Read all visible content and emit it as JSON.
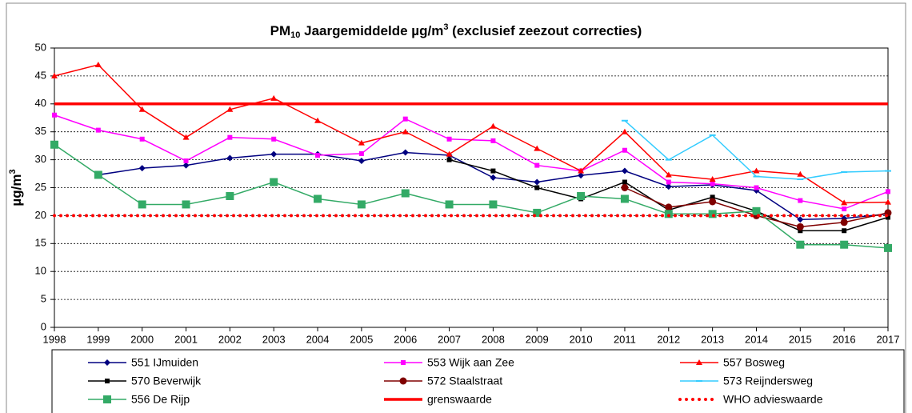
{
  "chart_data": {
    "type": "line",
    "title": [
      "PM",
      "10",
      " Jaargemiddelde µg/m",
      "3",
      "  (exclusief zeezout correcties)"
    ],
    "y_label": [
      "µg/m",
      "3"
    ],
    "categories": [
      "1998",
      "1999",
      "2000",
      "2001",
      "2002",
      "2003",
      "2004",
      "2005",
      "2006",
      "2007",
      "2008",
      "2009",
      "2010",
      "2011",
      "2012",
      "2013",
      "2014",
      "2015",
      "2016",
      "2017"
    ],
    "ylim": [
      0,
      50
    ],
    "yticks": [
      0,
      5,
      10,
      15,
      20,
      25,
      30,
      35,
      40,
      45,
      50
    ],
    "grid": true,
    "legend": "bottom",
    "series": [
      {
        "name": "551 IJmuiden",
        "color": "#000080",
        "marker": "diamond",
        "values": [
          null,
          27.3,
          28.5,
          29,
          30.3,
          31,
          31,
          29.8,
          31.3,
          30.8,
          26.8,
          26,
          27.2,
          28,
          25.2,
          25.5,
          24.5,
          19.3,
          19.5,
          20.3
        ]
      },
      {
        "name": "553 Wijk aan Zee",
        "color": "#ff00ff",
        "marker": "square",
        "values": [
          38,
          35.3,
          33.7,
          29.8,
          34,
          33.7,
          30.8,
          31.1,
          37.3,
          33.7,
          33.4,
          29,
          28,
          31.7,
          26,
          25.7,
          25,
          22.7,
          21.2,
          24.3
        ]
      },
      {
        "name": "557 Bosweg",
        "color": "#ff0000",
        "marker": "triangle",
        "values": [
          45,
          47,
          39,
          34,
          39,
          41,
          37,
          33,
          35,
          31,
          36,
          32,
          28,
          35,
          27.3,
          26.5,
          28,
          27.4,
          22.3,
          22.4
        ]
      },
      {
        "name": "570 Beverwijk",
        "color": "#000000",
        "marker": "square",
        "values": [
          null,
          null,
          null,
          null,
          null,
          null,
          null,
          null,
          null,
          30,
          28,
          25,
          23,
          26,
          21,
          23.3,
          20.8,
          17.3,
          17.3,
          19.7
        ]
      },
      {
        "name": "572 Staalstraat",
        "color": "#800000",
        "marker": "circle",
        "values": [
          null,
          null,
          null,
          null,
          null,
          null,
          null,
          null,
          null,
          null,
          null,
          null,
          null,
          25,
          21.5,
          22.5,
          20,
          18,
          18.8,
          20.5
        ]
      },
      {
        "name": "573 Reijndersweg",
        "color": "#33ccff",
        "marker": "dash",
        "values": [
          null,
          null,
          null,
          null,
          null,
          null,
          null,
          null,
          null,
          null,
          null,
          null,
          null,
          37,
          30,
          34.4,
          27,
          26.5,
          27.8,
          28
        ]
      },
      {
        "name": "556 De Rijp",
        "color": "#33aa66",
        "marker": "bigsquare",
        "values": [
          32.7,
          27.3,
          22,
          22,
          23.5,
          26,
          23,
          22,
          24,
          22,
          22,
          20.5,
          23.5,
          23,
          20.3,
          20.3,
          20.8,
          14.8,
          14.8,
          14.2
        ]
      },
      {
        "name": "grenswaarde",
        "color": "#ff0000",
        "marker": "none",
        "style": "thick",
        "values": [
          40,
          40,
          40,
          40,
          40,
          40,
          40,
          40,
          40,
          40,
          40,
          40,
          40,
          40,
          40,
          40,
          40,
          40,
          40,
          40
        ]
      },
      {
        "name": "WHO advieswaarde",
        "color": "#ff0000",
        "marker": "none",
        "style": "dots",
        "values": [
          20,
          20,
          20,
          20,
          20,
          20,
          20,
          20,
          20,
          20,
          20,
          20,
          20,
          20,
          20,
          20,
          20,
          20,
          20,
          20
        ]
      }
    ]
  }
}
